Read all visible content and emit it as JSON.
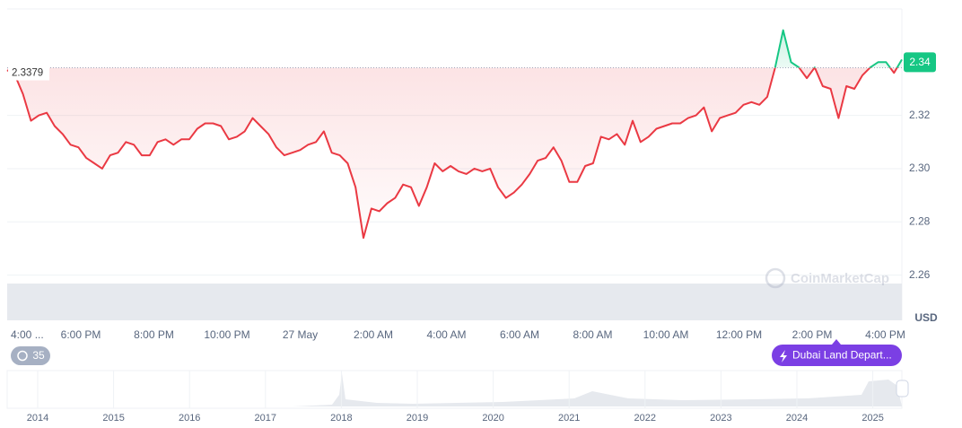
{
  "chart_data": {
    "type": "line",
    "baseline": 2.3379,
    "current_price": 2.34,
    "unit": "USD",
    "watermark": "CoinMarketCap",
    "x_labels": [
      "4:00 ...",
      "6:00 PM",
      "8:00 PM",
      "10:00 PM",
      "27 May",
      "2:00 AM",
      "4:00 AM",
      "6:00 AM",
      "8:00 AM",
      "10:00 AM",
      "12:00 PM",
      "2:00 PM",
      "4:00 PM"
    ],
    "ylim": [
      2.243,
      2.36
    ],
    "yticks": [
      2.26,
      2.28,
      {
        "value": 2.3,
        "label": "2.30"
      },
      2.32
    ],
    "grid": true,
    "series": [
      {
        "color_up": "#16c784",
        "color_down": "#ea3943",
        "values": [
          2.337,
          2.335,
          2.328,
          2.318,
          2.32,
          2.321,
          2.316,
          2.313,
          2.309,
          2.308,
          2.304,
          2.302,
          2.3,
          2.305,
          2.306,
          2.31,
          2.309,
          2.305,
          2.305,
          2.31,
          2.311,
          2.309,
          2.311,
          2.311,
          2.315,
          2.317,
          2.317,
          2.316,
          2.311,
          2.312,
          2.314,
          2.319,
          2.316,
          2.313,
          2.308,
          2.305,
          2.306,
          2.307,
          2.309,
          2.31,
          2.314,
          2.306,
          2.305,
          2.302,
          2.293,
          2.274,
          2.285,
          2.284,
          2.287,
          2.289,
          2.294,
          2.293,
          2.286,
          2.293,
          2.302,
          2.299,
          2.301,
          2.299,
          2.298,
          2.3,
          2.299,
          2.3,
          2.293,
          2.289,
          2.291,
          2.294,
          2.298,
          2.303,
          2.304,
          2.308,
          2.303,
          2.295,
          2.295,
          2.301,
          2.302,
          2.312,
          2.311,
          2.313,
          2.309,
          2.318,
          2.31,
          2.312,
          2.315,
          2.316,
          2.317,
          2.317,
          2.319,
          2.32,
          2.323,
          2.314,
          2.319,
          2.32,
          2.321,
          2.324,
          2.325,
          2.324,
          2.327,
          2.338,
          2.352,
          2.34,
          2.338,
          2.334,
          2.338,
          2.331,
          2.33,
          2.319,
          2.331,
          2.33,
          2.335,
          2.338,
          2.34,
          2.34,
          2.336,
          2.341
        ]
      }
    ]
  },
  "badges": {
    "count": "35",
    "event": "Dubai Land Depart..."
  },
  "navigator": {
    "years": [
      "2014",
      "2015",
      "2016",
      "2017",
      "2018",
      "2019",
      "2020",
      "2021",
      "2022",
      "2023",
      "2024",
      "2025"
    ]
  }
}
